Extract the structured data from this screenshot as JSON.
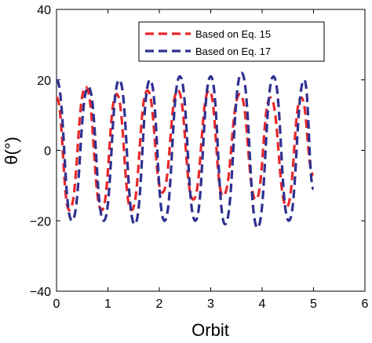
{
  "chart_data": {
    "type": "line",
    "xlabel": "Orbit",
    "ylabel": "θ(°)",
    "xlim": [
      0,
      6
    ],
    "ylim": [
      -40,
      40
    ],
    "x_ticks": [
      "0",
      "1",
      "2",
      "3",
      "4",
      "5",
      "6"
    ],
    "y_ticks": [
      "40",
      "20",
      "0",
      "−20",
      "−40"
    ],
    "grid": false,
    "legend_position": "top-right",
    "series": [
      {
        "name": "Based on Eq. 15",
        "color": "#e8282a",
        "dash": "dashed",
        "points": [
          [
            0.0,
            15
          ],
          [
            0.25,
            -17
          ],
          [
            0.57,
            18
          ],
          [
            0.88,
            -17
          ],
          [
            1.17,
            16
          ],
          [
            1.46,
            -17
          ],
          [
            1.77,
            17
          ],
          [
            2.06,
            -12
          ],
          [
            2.36,
            17
          ],
          [
            2.66,
            -14
          ],
          [
            2.97,
            17
          ],
          [
            3.24,
            -13
          ],
          [
            3.57,
            16
          ],
          [
            3.88,
            -14
          ],
          [
            4.16,
            15
          ],
          [
            4.48,
            -16
          ],
          [
            4.76,
            15
          ],
          [
            5.0,
            -7
          ]
        ]
      },
      {
        "name": "Based on Eq. 17",
        "color": "#2e3191",
        "dash": "dashed",
        "points": [
          [
            0.0,
            20
          ],
          [
            0.3,
            -20
          ],
          [
            0.62,
            18
          ],
          [
            0.92,
            -20
          ],
          [
            1.22,
            20
          ],
          [
            1.52,
            -21
          ],
          [
            1.82,
            20
          ],
          [
            2.1,
            -20
          ],
          [
            2.4,
            21
          ],
          [
            2.7,
            -20
          ],
          [
            3.0,
            21
          ],
          [
            3.28,
            -21
          ],
          [
            3.6,
            22
          ],
          [
            3.91,
            -22
          ],
          [
            4.22,
            21
          ],
          [
            4.52,
            -20
          ],
          [
            4.82,
            20
          ],
          [
            5.0,
            -11
          ]
        ]
      }
    ]
  }
}
